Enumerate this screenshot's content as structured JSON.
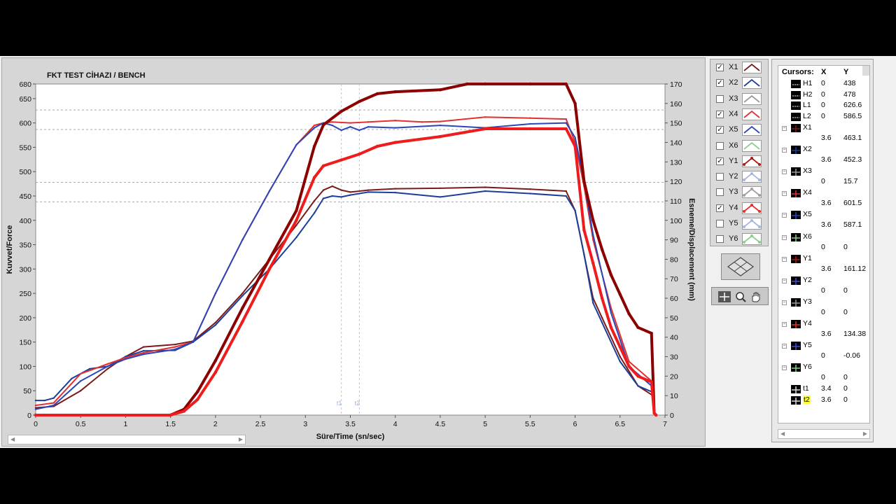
{
  "chart_data": {
    "type": "line",
    "title": "FKT TEST CİHAZI / BENCH",
    "xlabel": "Süre/Time (sn/sec)",
    "ylabel": "Kuvvet/Force",
    "y2label": "Esneme/Displacement (mm)",
    "xlim": [
      0,
      7
    ],
    "ylim": [
      0,
      680
    ],
    "y2lim": [
      0,
      170
    ],
    "xticks": [
      "0",
      "0.5",
      "1",
      "1.5",
      "2",
      "2.5",
      "3",
      "3.5",
      "4",
      "4.5",
      "5",
      "5.5",
      "6",
      "6.5",
      "7"
    ],
    "yticks": [
      "0",
      "50",
      "100",
      "150",
      "200",
      "250",
      "300",
      "350",
      "400",
      "450",
      "500",
      "550",
      "600",
      "650",
      "680"
    ],
    "y2ticks": [
      "0",
      "10",
      "20",
      "30",
      "40",
      "50",
      "60",
      "70",
      "80",
      "90",
      "100",
      "110",
      "120",
      "130",
      "140",
      "150",
      "160",
      "170"
    ],
    "cursor_labels": [
      "t1",
      "t2"
    ],
    "series": [
      {
        "name": "X1",
        "color": "#7a1a1a",
        "axis": "left",
        "x": [
          0,
          0.2,
          0.5,
          0.8,
          1.0,
          1.2,
          1.55,
          1.75,
          2.0,
          2.3,
          2.6,
          2.9,
          3.1,
          3.2,
          3.3,
          3.4,
          3.5,
          3.7,
          4.0,
          4.5,
          5.0,
          5.5,
          5.9,
          6.0,
          6.1,
          6.2,
          6.3,
          6.5,
          6.7,
          6.85
        ],
        "y": [
          15,
          18,
          50,
          95,
          120,
          140,
          145,
          152,
          190,
          250,
          320,
          390,
          440,
          462,
          470,
          462,
          458,
          462,
          465,
          466,
          468,
          464,
          460,
          420,
          330,
          240,
          200,
          120,
          60,
          42
        ]
      },
      {
        "name": "X2",
        "color": "#1a3f99",
        "axis": "left",
        "x": [
          0,
          0.1,
          0.2,
          0.4,
          0.6,
          0.8,
          1.0,
          1.2,
          1.55,
          1.75,
          2.0,
          2.3,
          2.6,
          2.9,
          3.1,
          3.2,
          3.3,
          3.4,
          3.5,
          3.7,
          4.0,
          4.5,
          5.0,
          5.5,
          5.9,
          6.0,
          6.1,
          6.2,
          6.3,
          6.5,
          6.7,
          6.85
        ],
        "y": [
          30,
          30,
          35,
          75,
          95,
          100,
          120,
          132,
          133,
          150,
          185,
          245,
          300,
          365,
          415,
          445,
          450,
          448,
          452,
          458,
          457,
          448,
          460,
          455,
          450,
          420,
          330,
          230,
          190,
          110,
          60,
          48
        ]
      },
      {
        "name": "X4",
        "color": "#e23030",
        "axis": "left",
        "x": [
          0,
          0.2,
          0.5,
          0.8,
          1.0,
          1.2,
          1.55,
          1.75,
          2.0,
          2.3,
          2.6,
          2.9,
          3.1,
          3.2,
          3.3,
          3.5,
          3.7,
          4.0,
          4.3,
          4.5,
          5.0,
          5.5,
          5.9,
          6.0,
          6.1,
          6.2,
          6.4,
          6.6,
          6.85
        ],
        "y": [
          20,
          25,
          85,
          105,
          118,
          128,
          140,
          150,
          250,
          360,
          460,
          555,
          595,
          600,
          602,
          600,
          602,
          605,
          602,
          603,
          612,
          610,
          608,
          560,
          470,
          360,
          220,
          110,
          70
        ]
      },
      {
        "name": "X5",
        "color": "#2a46b8",
        "axis": "left",
        "x": [
          0,
          0.2,
          0.5,
          0.8,
          1.0,
          1.2,
          1.55,
          1.75,
          2.0,
          2.3,
          2.6,
          2.9,
          3.1,
          3.2,
          3.3,
          3.4,
          3.5,
          3.6,
          3.7,
          4.0,
          4.5,
          5.0,
          5.5,
          5.9,
          6.0,
          6.1,
          6.2,
          6.4,
          6.6,
          6.85
        ],
        "y": [
          12,
          20,
          70,
          100,
          115,
          125,
          135,
          150,
          250,
          360,
          460,
          555,
          590,
          600,
          595,
          585,
          592,
          585,
          592,
          590,
          595,
          590,
          598,
          600,
          570,
          480,
          370,
          210,
          100,
          60
        ]
      },
      {
        "name": "Y1",
        "color": "#8b0000",
        "axis": "right",
        "x": [
          0,
          1.5,
          1.65,
          1.8,
          2.0,
          2.3,
          2.6,
          2.9,
          3.1,
          3.2,
          3.4,
          3.6,
          3.8,
          4.0,
          4.5,
          4.8,
          5.0,
          5.5,
          5.9,
          6.0,
          6.1,
          6.2,
          6.3,
          6.4,
          6.5,
          6.6,
          6.7,
          6.85,
          6.88,
          6.9
        ],
        "y": [
          0,
          0,
          3,
          12,
          28,
          55,
          80,
          105,
          138,
          149,
          156,
          161,
          165,
          166,
          167,
          170,
          170,
          170,
          170,
          160,
          120,
          100,
          85,
          72,
          62,
          52,
          45,
          42,
          1,
          0
        ]
      },
      {
        "name": "Y4",
        "color": "#ee1c1c",
        "axis": "right",
        "x": [
          0,
          1.5,
          1.65,
          1.8,
          2.0,
          2.3,
          2.6,
          2.9,
          3.1,
          3.2,
          3.4,
          3.6,
          3.8,
          4.0,
          4.5,
          5.0,
          5.5,
          5.9,
          6.0,
          6.1,
          6.2,
          6.3,
          6.4,
          6.5,
          6.6,
          6.7,
          6.85,
          6.88,
          6.9
        ],
        "y": [
          0,
          0,
          2,
          8,
          22,
          48,
          75,
          100,
          122,
          128,
          131,
          134,
          138,
          140,
          143,
          147,
          147,
          147,
          138,
          95,
          78,
          60,
          45,
          35,
          25,
          20,
          17,
          1,
          0
        ]
      }
    ]
  },
  "legend": [
    {
      "label": "X1",
      "checked": true,
      "color": "#7a1a1a",
      "style": "line"
    },
    {
      "label": "X2",
      "checked": true,
      "color": "#1a3f99",
      "style": "line"
    },
    {
      "label": "X3",
      "checked": false,
      "color": "#9a9a9a",
      "style": "line"
    },
    {
      "label": "X4",
      "checked": true,
      "color": "#e23030",
      "style": "line"
    },
    {
      "label": "X5",
      "checked": true,
      "color": "#2a46b8",
      "style": "line"
    },
    {
      "label": "X6",
      "checked": false,
      "color": "#8ccf8c",
      "style": "line"
    },
    {
      "label": "Y1",
      "checked": true,
      "color": "#b01818",
      "style": "dots"
    },
    {
      "label": "Y2",
      "checked": false,
      "color": "#a7b5e0",
      "style": "dots"
    },
    {
      "label": "Y3",
      "checked": false,
      "color": "#a0a0a0",
      "style": "dots"
    },
    {
      "label": "Y4",
      "checked": true,
      "color": "#e23030",
      "style": "dots"
    },
    {
      "label": "Y5",
      "checked": false,
      "color": "#a7b5e0",
      "style": "dots"
    },
    {
      "label": "Y6",
      "checked": false,
      "color": "#8ccf8c",
      "style": "dots"
    }
  ],
  "cursors": {
    "header": {
      "name": "Cursors:",
      "x": "X",
      "y": "Y"
    },
    "markers": [
      {
        "name": "H1",
        "x": "0",
        "y": "438"
      },
      {
        "name": "H2",
        "x": "0",
        "y": "478"
      },
      {
        "name": "L1",
        "x": "0",
        "y": "626.6"
      },
      {
        "name": "L2",
        "x": "0",
        "y": "586.5"
      }
    ],
    "channels": [
      {
        "name": "X1",
        "x": "3.6",
        "y": "463.1",
        "color": "#7a1a1a"
      },
      {
        "name": "X2",
        "x": "3.6",
        "y": "452.3",
        "color": "#1a3f99"
      },
      {
        "name": "X3",
        "x": "0",
        "y": "15.7",
        "color": "#9a9a9a"
      },
      {
        "name": "X4",
        "x": "3.6",
        "y": "601.5",
        "color": "#e23030"
      },
      {
        "name": "X5",
        "x": "3.6",
        "y": "587.1",
        "color": "#2a46b8"
      },
      {
        "name": "X6",
        "x": "0",
        "y": "0",
        "color": "#8ccf8c"
      },
      {
        "name": "Y1",
        "x": "3.6",
        "y": "161.12",
        "color": "#b01818"
      },
      {
        "name": "Y2",
        "x": "0",
        "y": "0",
        "color": "#3a4fd0"
      },
      {
        "name": "Y3",
        "x": "0",
        "y": "0",
        "color": "#9a9a9a"
      },
      {
        "name": "Y4",
        "x": "3.6",
        "y": "134.38",
        "color": "#e23030"
      },
      {
        "name": "Y5",
        "x": "0",
        "y": "-0.06",
        "color": "#3a4fd0"
      },
      {
        "name": "Y6",
        "x": "0",
        "y": "0",
        "color": "#8ccf8c"
      }
    ],
    "times": [
      {
        "name": "t1",
        "x": "3.4",
        "y": "0"
      },
      {
        "name": "t2",
        "x": "3.6",
        "y": "0"
      }
    ]
  }
}
